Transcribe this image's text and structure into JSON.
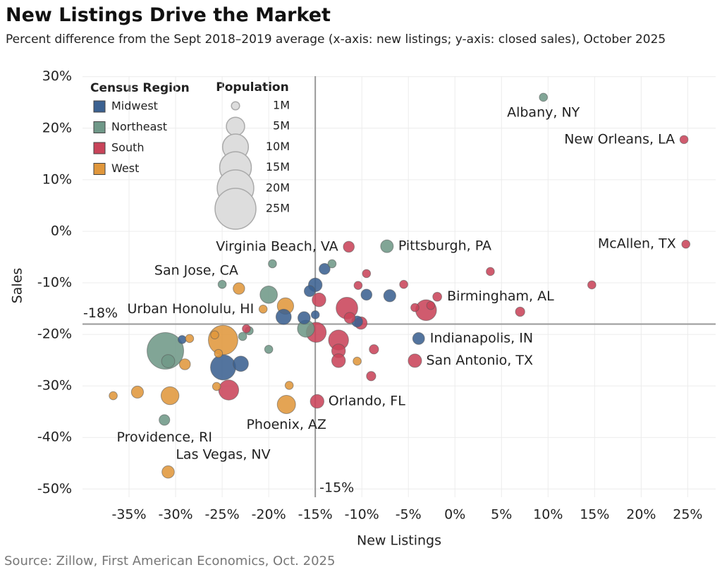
{
  "chart_data": {
    "type": "bubble",
    "title": "New Listings Drive the Market",
    "subtitle": "Percent difference from the Sept 2018–2019 average (x-axis: new listings; y-axis: closed sales), October 2025",
    "x_label": "New Listings",
    "y_label": "Sales",
    "source": "Source: Zillow, First American Economics, Oct. 2025",
    "xlim": [
      -40,
      28
    ],
    "ylim": [
      -51.6,
      30.1
    ],
    "xticks": [
      {
        "value": -35,
        "label": "-35%"
      },
      {
        "value": -30,
        "label": "-30%"
      },
      {
        "value": -25,
        "label": "-25%"
      },
      {
        "value": -20,
        "label": "-20%"
      },
      {
        "value": -15,
        "label": "-15%"
      },
      {
        "value": -10,
        "label": "-10%"
      },
      {
        "value": -5,
        "label": "-5%"
      },
      {
        "value": 0,
        "label": "0%"
      },
      {
        "value": 5,
        "label": "5%"
      },
      {
        "value": 10,
        "label": "10%"
      },
      {
        "value": 15,
        "label": "15%"
      },
      {
        "value": 20,
        "label": "20%"
      },
      {
        "value": 25,
        "label": "25%"
      }
    ],
    "yticks": [
      {
        "value": -50,
        "label": "-50%"
      },
      {
        "value": -40,
        "label": "-40%"
      },
      {
        "value": -30,
        "label": "-30%"
      },
      {
        "value": -20,
        "label": "-20%"
      },
      {
        "value": -10,
        "label": "-10%"
      },
      {
        "value": 0,
        "label": "0%"
      },
      {
        "value": 10,
        "label": "10%"
      },
      {
        "value": 20,
        "label": "20%"
      },
      {
        "value": 30,
        "label": "30%"
      }
    ],
    "grid": true,
    "hline": {
      "value": -18,
      "label": "-18%"
    },
    "vline": {
      "value": -15,
      "label": "-15%"
    },
    "legend_title": "Census Region",
    "size_legend": {
      "title": "Population",
      "values": [
        1,
        5,
        10,
        15,
        20,
        25
      ],
      "labels": [
        "1M",
        "5M",
        "10M",
        "15M",
        "20M",
        "25M"
      ]
    },
    "series": [
      {
        "name": "Midwest",
        "color": "#3b6191",
        "x": [
          -3.9,
          -29.3,
          -24.9,
          -23.0,
          -18.4,
          -16.2,
          -15.0,
          -15.6,
          -14.0,
          -15.0,
          -10.5,
          -9.5,
          -7.0
        ],
        "values": [
          -20.8,
          -21.0,
          -26.4,
          -25.7,
          -16.6,
          -16.8,
          -10.4,
          -11.6,
          -7.3,
          -16.2,
          -17.5,
          -12.3,
          -12.5
        ],
        "sizes": [
          2.1,
          1,
          9.5,
          3.5,
          3.5,
          2.3,
          2.8,
          1.8,
          1.8,
          1,
          1.8,
          1.8,
          2.2
        ],
        "labels": [
          "Indianapolis, IN",
          null,
          null,
          null,
          null,
          null,
          null,
          null,
          null,
          null,
          null,
          null,
          null
        ]
      },
      {
        "name": "Northeast",
        "color": "#6f9888",
        "x": [
          9.5,
          -7.3,
          -31.2,
          -31.1,
          -30.8,
          -22.1,
          -22.8,
          -20.0,
          -25.0,
          -19.6,
          -20.0,
          -16.0,
          -13.2
        ],
        "values": [
          26.0,
          -2.9,
          -36.6,
          -23.2,
          -25.2,
          -19.3,
          -20.4,
          -22.9,
          -10.3,
          -6.3,
          -12.3,
          -18.9,
          -6.3
        ],
        "sizes": [
          1,
          2.4,
          1.7,
          20,
          2.6,
          1,
          1,
          1,
          1,
          1,
          4.5,
          4.3,
          1
        ],
        "labels": [
          "Albany, NY",
          "Pittsburgh, PA",
          "Providence, RI",
          null,
          null,
          null,
          null,
          null,
          null,
          null,
          null,
          null,
          null
        ]
      },
      {
        "name": "South",
        "color": "#c9445a",
        "x": [
          24.6,
          24.8,
          -11.4,
          -1.9,
          -4.3,
          -14.8,
          -24.3,
          -22.4,
          -14.9,
          -14.6,
          -11.6,
          -12.5,
          -12.5,
          -12.5,
          -11.3,
          -10.1,
          -10.4,
          -9.5,
          -8.7,
          -9.0,
          -5.5,
          -4.3,
          -3.1,
          -2.6,
          3.8,
          7.0,
          14.7
        ],
        "values": [
          17.8,
          -2.5,
          -3.0,
          -12.7,
          -25.1,
          -33.0,
          -30.8,
          -18.9,
          -19.6,
          -13.3,
          -14.9,
          -21.1,
          -23.2,
          -25.1,
          -16.8,
          -17.8,
          -10.5,
          -8.2,
          -22.9,
          -28.1,
          -10.3,
          -14.8,
          -15.3,
          -14.4,
          -7.8,
          -15.6,
          -10.4
        ],
        "sizes": [
          1,
          1,
          1.8,
          1.2,
          2.7,
          2.8,
          6,
          1,
          6,
          2.8,
          7,
          6,
          2.8,
          2.8,
          1.8,
          2.3,
          1,
          1,
          1.3,
          1.3,
          1,
          1,
          6.5,
          1,
          1,
          1.3,
          1
        ],
        "labels": [
          "New Orleans, LA",
          "McAllen, TX",
          "Virginia Beach, VA",
          "Birmingham, AL",
          "San Antonio, TX",
          "Orlando, FL",
          null,
          null,
          null,
          null,
          null,
          null,
          null,
          null,
          null,
          null,
          null,
          null,
          null,
          null,
          null,
          null,
          null,
          null,
          null,
          null,
          null
        ]
      },
      {
        "name": "West",
        "color": "#e0973c",
        "x": [
          -23.2,
          -20.6,
          -18.1,
          -30.8,
          -24.9,
          -30.6,
          -34.1,
          -36.7,
          -29.0,
          -28.5,
          -25.6,
          -25.4,
          -25.8,
          -18.2,
          -10.5,
          -17.8
        ],
        "values": [
          -11.1,
          -15.1,
          -33.6,
          -46.7,
          -21.1,
          -31.9,
          -31.2,
          -31.9,
          -25.8,
          -20.8,
          -30.1,
          -23.7,
          -20.1,
          -14.5,
          -25.2,
          -29.9
        ],
        "sizes": [
          2,
          1,
          5,
          2.3,
          13,
          4.8,
          2.2,
          1,
          1.8,
          1,
          1,
          1,
          1,
          4,
          1,
          1
        ],
        "labels": [
          "San Jose, CA",
          "Urban Honolulu, HI",
          "Phoenix, AZ",
          "Las Vegas, NV",
          null,
          null,
          null,
          null,
          null,
          null,
          null,
          null,
          null,
          null,
          null,
          null
        ]
      }
    ]
  }
}
